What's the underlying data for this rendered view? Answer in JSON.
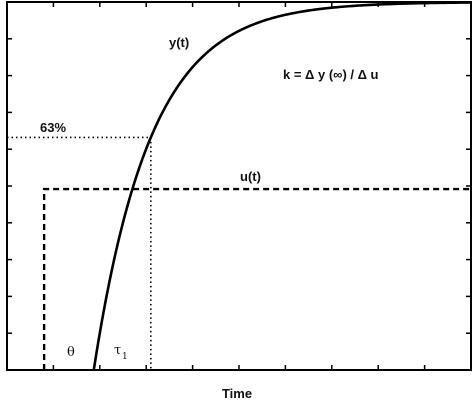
{
  "chart_data": {
    "type": "line",
    "xlabel": "Time",
    "ylabel": "",
    "title": "",
    "grid": false,
    "xlim": [
      0,
      10
    ],
    "ylim": [
      0,
      1.22
    ],
    "series": [
      {
        "name": "y(t)",
        "style": "solid",
        "theta": 1.87,
        "tau": 1.23,
        "gain": 1.22
      },
      {
        "name": "u(t)",
        "style": "dashed",
        "step_time": 0.8,
        "level": 0.6
      }
    ],
    "annotations": {
      "percent_label": "63%",
      "percent_level": 0.771,
      "formula": "k = Δ y (∞) / Δ u",
      "theta_label": "θ",
      "tau_label": "τ",
      "tau_subscript": "1",
      "tau_time": 3.1
    },
    "y_label": "y(t)",
    "u_label": "u(t)"
  }
}
